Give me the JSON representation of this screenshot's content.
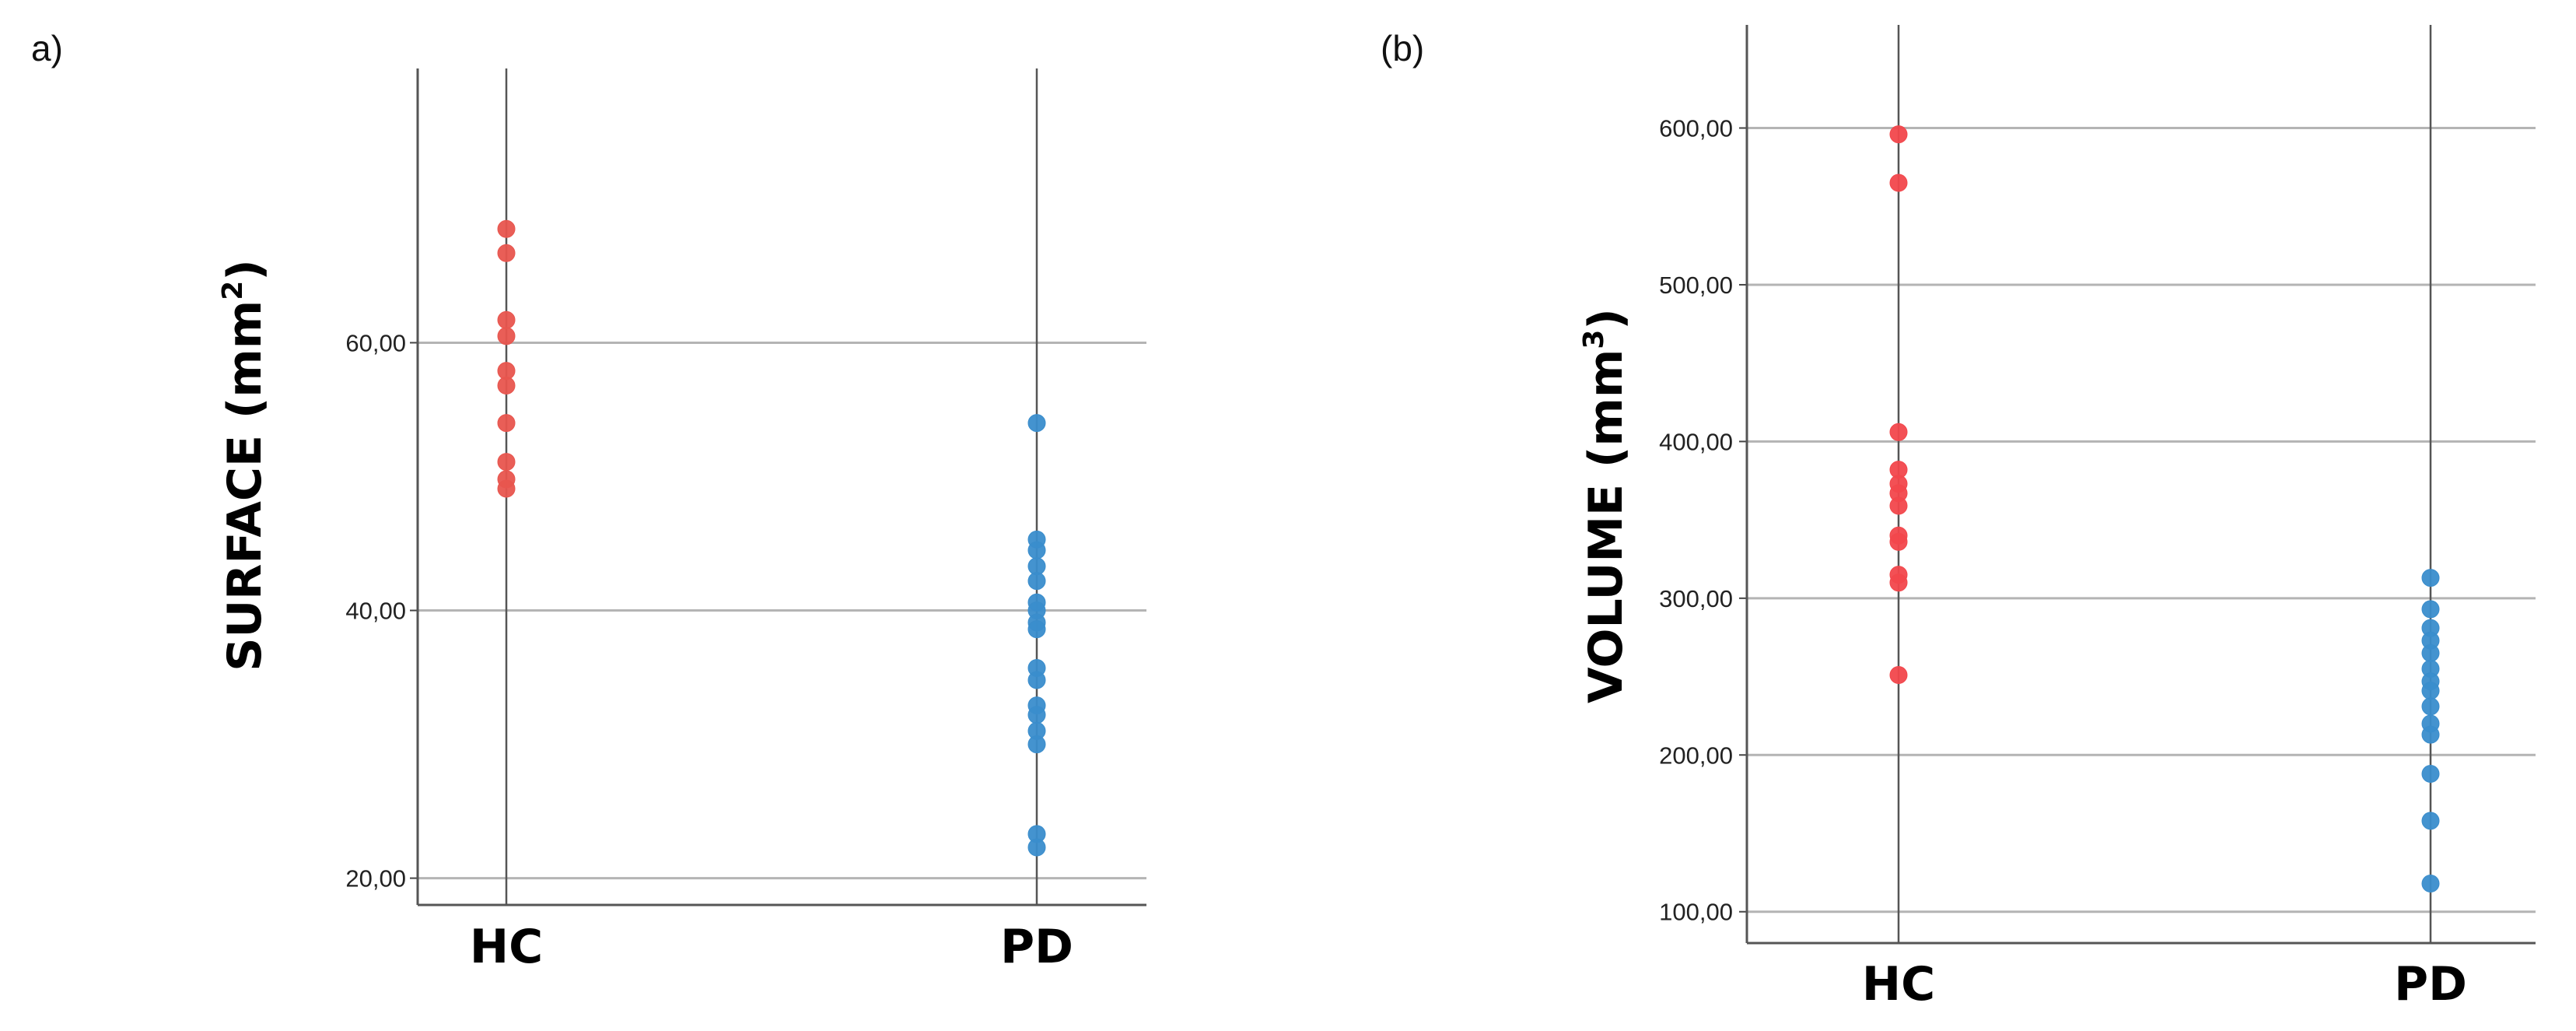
{
  "chart_data": [
    {
      "type": "scatter",
      "panel_label": "a)",
      "ylabel": {
        "text": "SURFACE (mm",
        "superscript": "2",
        "close": ")"
      },
      "categories": [
        "HC",
        "PD"
      ],
      "ylim": [
        18.0,
        77.0
      ],
      "yticks": [
        20,
        40,
        60
      ],
      "ytick_labels": [
        "20,00",
        "40,00",
        "60,00"
      ],
      "grid": true,
      "series": [
        {
          "category": "HC",
          "color": "#e8554e",
          "values": [
            68.5,
            66.7,
            61.7,
            60.5,
            57.9,
            56.8,
            54.0,
            51.1,
            49.8,
            49.1
          ]
        },
        {
          "category": "PD",
          "color": "#3a8dcc",
          "values": [
            54.0,
            45.3,
            44.5,
            43.3,
            42.2,
            40.6,
            40.0,
            39.1,
            38.6,
            35.7,
            34.8,
            32.9,
            32.2,
            31.0,
            30.0,
            23.3,
            22.3
          ]
        }
      ]
    },
    {
      "type": "scatter",
      "panel_label": "(b)",
      "ylabel": {
        "text": "VOLUME (mm",
        "superscript": "3",
        "close": ")"
      },
      "categories": [
        "HC",
        "PD"
      ],
      "ylim": [
        80.0,
        636.0
      ],
      "yticks": [
        100,
        200,
        300,
        400,
        500,
        600
      ],
      "ytick_labels": [
        "100,00",
        "200,00",
        "300,00",
        "400,00",
        "500,00",
        "600,00"
      ],
      "grid": true,
      "series": [
        {
          "category": "HC",
          "color": "#f2474c",
          "values": [
            596,
            565,
            406,
            382,
            373,
            367,
            359,
            340,
            336,
            315,
            310,
            251
          ]
        },
        {
          "category": "PD",
          "color": "#3a8dcc",
          "values": [
            313,
            293,
            281,
            273,
            265,
            255,
            247,
            241,
            231,
            220,
            213,
            188,
            158,
            118
          ]
        }
      ]
    }
  ]
}
